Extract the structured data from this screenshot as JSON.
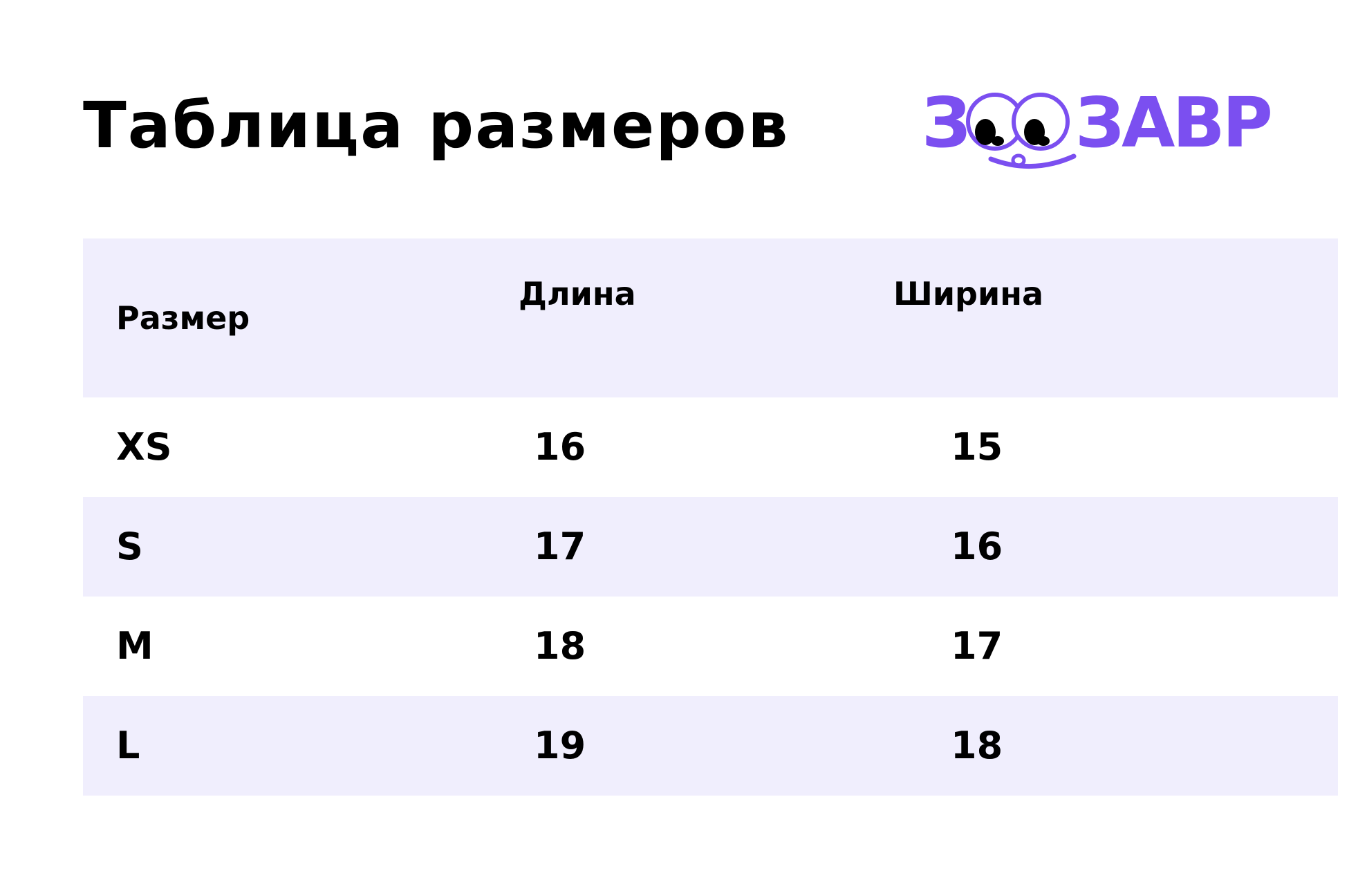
{
  "header": {
    "title": "Таблица размеров",
    "logo_text": "ЗООЗАВР"
  },
  "colors": {
    "brand": "#7b4ff0",
    "row_shade": "#f0eefd",
    "text": "#000000"
  },
  "table": {
    "columns": [
      "Размер",
      "Длина",
      "Ширина"
    ],
    "rows": [
      {
        "size": "XS",
        "length": "16",
        "width": "15"
      },
      {
        "size": "S",
        "length": "17",
        "width": "16"
      },
      {
        "size": "M",
        "length": "18",
        "width": "17"
      },
      {
        "size": "L",
        "length": "19",
        "width": "18"
      }
    ]
  }
}
